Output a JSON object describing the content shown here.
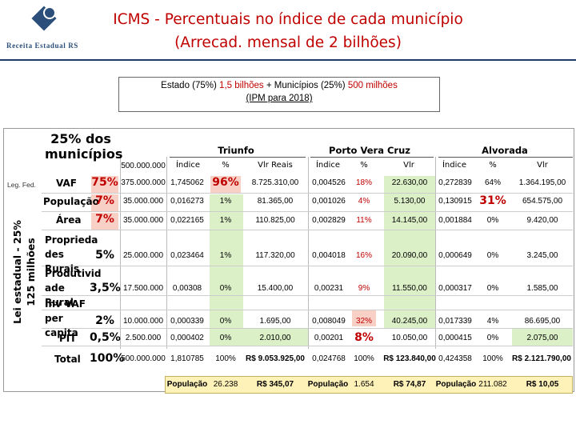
{
  "header": {
    "logo_text": "Receita Estadual RS",
    "title_line1": "ICMS - Percentuais no índice de cada município",
    "title_line2": "(Arrecad. mensal de 2 bilhões)"
  },
  "info": {
    "part1": "Estado (75%) ",
    "part2": "1,5 bilhões",
    "part3": " + Municípios (25%) ",
    "part4": "500 milhões",
    "line2": "(IPM para 2018)"
  },
  "table": {
    "side_label_line1": "Lei estadual - 25%",
    "side_label_line2": "125 milhões",
    "leg_fed": "Leg. Fed.",
    "corner_line1": "25% dos",
    "corner_line2": "municípios",
    "base_value": "500.000.000",
    "groups": [
      "Triunfo",
      "Porto Vera Cruz",
      "Alvorada"
    ],
    "col_headers": [
      "Índice",
      "%",
      "Vlr Reais",
      "Índice",
      "%",
      "Vlr",
      "Índice",
      "%",
      "Vlr"
    ],
    "rows": [
      {
        "label": "VAF",
        "pct": "75%",
        "base": "375.000.000",
        "t_idx": "1,745062",
        "t_pct": "96%",
        "t_vlr": "8.725.310,00",
        "p_idx": "0,004526",
        "p_pct": "18%",
        "p_vlr": "22.630,00",
        "a_idx": "0,272839",
        "a_pct": "64%",
        "a_vlr": "1.364.195,00"
      },
      {
        "label": "População",
        "pct": "7%",
        "base": "35.000.000",
        "t_idx": "0,016273",
        "t_pct": "1%",
        "t_vlr": "81.365,00",
        "p_idx": "0,001026",
        "p_pct": "4%",
        "p_vlr": "5.130,00",
        "a_idx": "0,130915",
        "a_pct": "31%",
        "a_vlr": "654.575,00"
      },
      {
        "label": "Área",
        "pct": "7%",
        "base": "35.000.000",
        "t_idx": "0,022165",
        "t_pct": "1%",
        "t_vlr": "110.825,00",
        "p_idx": "0,002829",
        "p_pct": "11%",
        "p_vlr": "14.145,00",
        "a_idx": "0,001884",
        "a_pct": "0%",
        "a_vlr": "9.420,00"
      },
      {
        "label": "Proprieda des Rurais",
        "pct": "5%",
        "base": "25.000.000",
        "t_idx": "0,023464",
        "t_pct": "1%",
        "t_vlr": "117.320,00",
        "p_idx": "0,004018",
        "p_pct": "16%",
        "p_vlr": "20.090,00",
        "a_idx": "0,000649",
        "a_pct": "0%",
        "a_vlr": "3.245,00"
      },
      {
        "label": "Produtivid ade Rural",
        "pct": "3,5%",
        "base": "17.500.000",
        "t_idx": "0,00308",
        "t_pct": "0%",
        "t_vlr": "15.400,00",
        "p_idx": "0,00231",
        "p_pct": "9%",
        "p_vlr": "11.550,00",
        "a_idx": "0,000317",
        "a_pct": "0%",
        "a_vlr": "1.585,00"
      },
      {
        "label": "Inv VAF per capita",
        "pct": "2%",
        "base": "10.000.000",
        "t_idx": "0,000339",
        "t_pct": "0%",
        "t_vlr": "1.695,00",
        "p_idx": "0,008049",
        "p_pct": "32%",
        "p_vlr": "40.245,00",
        "a_idx": "0,017339",
        "a_pct": "4%",
        "a_vlr": "86.695,00"
      },
      {
        "label": "PIT",
        "pct": "0,5%",
        "base": "2.500.000",
        "t_idx": "0,000402",
        "t_pct": "0%",
        "t_vlr": "2.010,00",
        "p_idx": "0,00201",
        "p_pct": "8%",
        "p_vlr": "10.050,00",
        "a_idx": "0,000415",
        "a_pct": "0%",
        "a_vlr": "2.075,00"
      },
      {
        "label": "Total",
        "pct": "100%",
        "base": "500.000.000",
        "t_idx": "1,810785",
        "t_pct": "100%",
        "t_vlr": "R$ 9.053.925,00",
        "p_idx": "0,024768",
        "p_pct": "100%",
        "p_vlr": "R$ 123.840,00",
        "a_idx": "0,424358",
        "a_pct": "100%",
        "a_vlr": "R$ 2.121.790,00"
      }
    ],
    "footer": {
      "label": "População",
      "t_pop": "26.238",
      "t_per": "R$ 345,07",
      "p_pop": "1.654",
      "p_per": "R$ 74,87",
      "a_pop": "211.082",
      "a_per": "R$ 10,05"
    }
  }
}
